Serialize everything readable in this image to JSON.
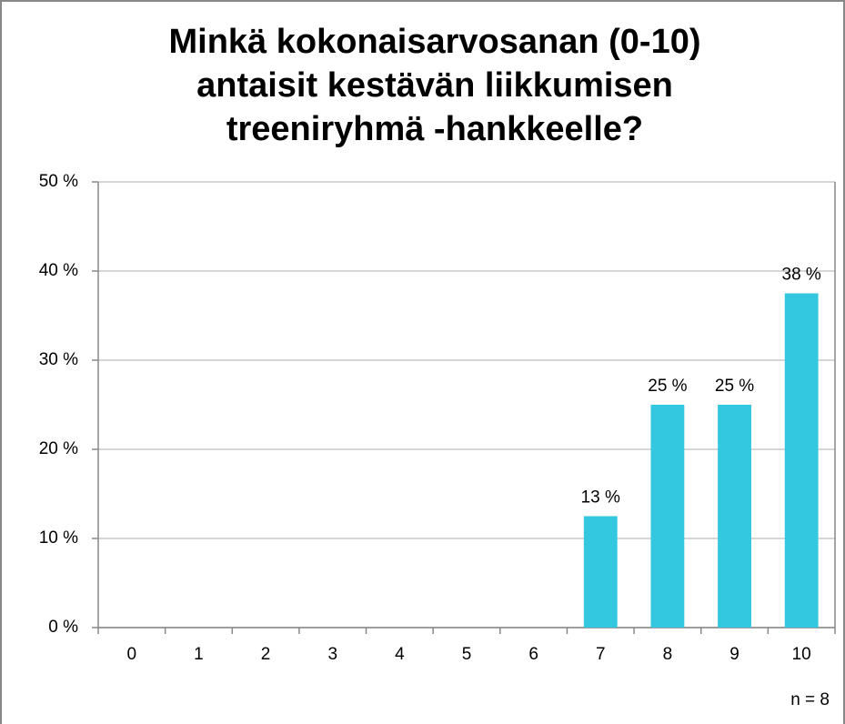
{
  "chart_data": {
    "type": "bar",
    "title": [
      "Minkä kokonaisarvosanan (0-10)",
      "antaisit kestävän liikkumisen",
      "treeniryhmä -hankkeelle?"
    ],
    "categories": [
      "0",
      "1",
      "2",
      "3",
      "4",
      "5",
      "6",
      "7",
      "8",
      "9",
      "10"
    ],
    "values": [
      0,
      0,
      0,
      0,
      0,
      0,
      0,
      12.5,
      25,
      25,
      37.5
    ],
    "value_labels": [
      null,
      null,
      null,
      null,
      null,
      null,
      null,
      "13 %",
      "25 %",
      "25 %",
      "38 %"
    ],
    "color": "#33c7e0",
    "ylim": [
      0,
      50
    ],
    "yticks": [
      {
        "value": 0,
        "label": "0 %"
      },
      {
        "value": 10,
        "label": "10 %"
      },
      {
        "value": 20,
        "label": "20 %"
      },
      {
        "value": 30,
        "label": "30 %"
      },
      {
        "value": 40,
        "label": "40 %"
      },
      {
        "value": 50,
        "label": "50 %"
      }
    ],
    "grid": true,
    "annotation": "n = 8"
  }
}
